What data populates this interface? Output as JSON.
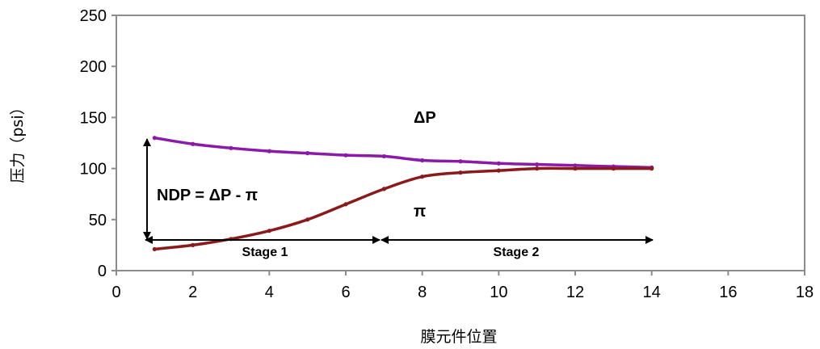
{
  "chart_data": {
    "type": "line",
    "xlabel": "膜元件位置",
    "ylabel": "压力（psi）",
    "xlim": [
      0,
      18
    ],
    "ylim": [
      0,
      250
    ],
    "x_ticks": [
      "0",
      "2",
      "4",
      "6",
      "8",
      "10",
      "12",
      "14",
      "16",
      "18"
    ],
    "y_ticks": [
      "0",
      "50",
      "100",
      "150",
      "200",
      "250"
    ],
    "grid": false,
    "legend": "none",
    "series": [
      {
        "name": "ΔP",
        "color": "#8b1aa8",
        "x": [
          1,
          2,
          3,
          4,
          5,
          6,
          7,
          8,
          9,
          10,
          11,
          12,
          13,
          14
        ],
        "y": [
          130,
          124,
          120,
          117,
          115,
          113,
          112,
          108,
          107,
          105,
          104,
          103,
          102,
          101
        ]
      },
      {
        "name": "π",
        "color": "#8b1a1a",
        "x": [
          1,
          2,
          3,
          4,
          5,
          6,
          7,
          8,
          9,
          10,
          11,
          12,
          13,
          14
        ],
        "y": [
          21,
          25,
          31,
          39,
          50,
          65,
          80,
          92,
          96,
          98,
          100,
          100,
          100,
          100
        ]
      }
    ],
    "annotations": {
      "delta_p_label": "ΔP",
      "pi_label": "π",
      "ndp_label": "NDP = ΔP - π",
      "stage1_label": "Stage 1",
      "stage2_label": "Stage 2"
    }
  }
}
